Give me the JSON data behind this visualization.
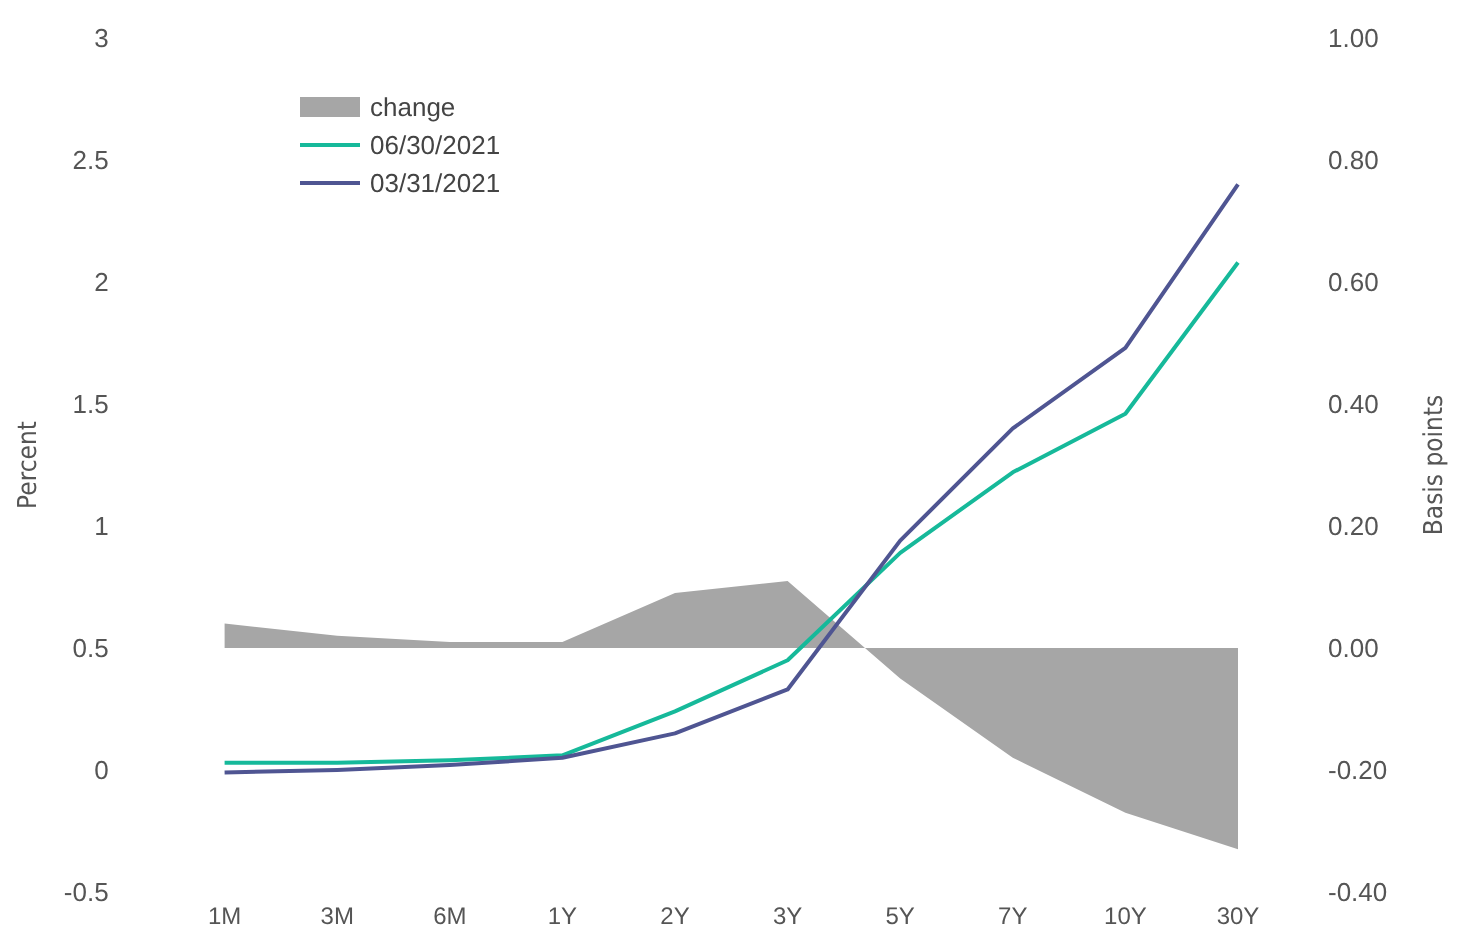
{
  "chart_data": {
    "type": "line",
    "ylabel": "Percent",
    "y2label": "Basis points",
    "categories": [
      "1M",
      "3M",
      "6M",
      "1Y",
      "2Y",
      "3Y",
      "5Y",
      "7Y",
      "10Y",
      "30Y"
    ],
    "series": [
      {
        "name": "change",
        "type": "area",
        "axis": "y2",
        "color": "#a6a6a6",
        "values": [
          0.04,
          0.02,
          0.01,
          0.01,
          0.09,
          0.11,
          -0.05,
          -0.18,
          -0.27,
          -0.33
        ]
      },
      {
        "name": "06/30/2021",
        "type": "line",
        "color": "#16b99a",
        "values": [
          0.03,
          0.03,
          0.04,
          0.06,
          0.24,
          0.45,
          0.89,
          1.22,
          1.46,
          2.08
        ]
      },
      {
        "name": "03/31/2021",
        "type": "line",
        "color": "#4f5592",
        "values": [
          -0.01,
          0.0,
          0.02,
          0.05,
          0.15,
          0.33,
          0.94,
          1.4,
          1.73,
          2.4
        ]
      }
    ],
    "ylim": [
      -0.5,
      3
    ],
    "yticks": [
      -0.5,
      0,
      0.5,
      1,
      1.5,
      2,
      2.5,
      3
    ],
    "y2lim": [
      -0.4,
      1.0
    ],
    "y2ticks": [
      {
        "value": -0.4,
        "label": "-0.40"
      },
      {
        "value": -0.2,
        "label": "-0.20"
      },
      {
        "value": 0,
        "label": "0.00"
      },
      {
        "value": 0.2,
        "label": "0.20"
      },
      {
        "value": 0.4,
        "label": "0.40"
      },
      {
        "value": 0.6,
        "label": "0.60"
      },
      {
        "value": 0.8,
        "label": "0.80"
      },
      {
        "value": 1.0,
        "label": "1.00"
      }
    ],
    "legend": "top left",
    "grid": false,
    "marker": "none",
    "line_style": "solid"
  }
}
